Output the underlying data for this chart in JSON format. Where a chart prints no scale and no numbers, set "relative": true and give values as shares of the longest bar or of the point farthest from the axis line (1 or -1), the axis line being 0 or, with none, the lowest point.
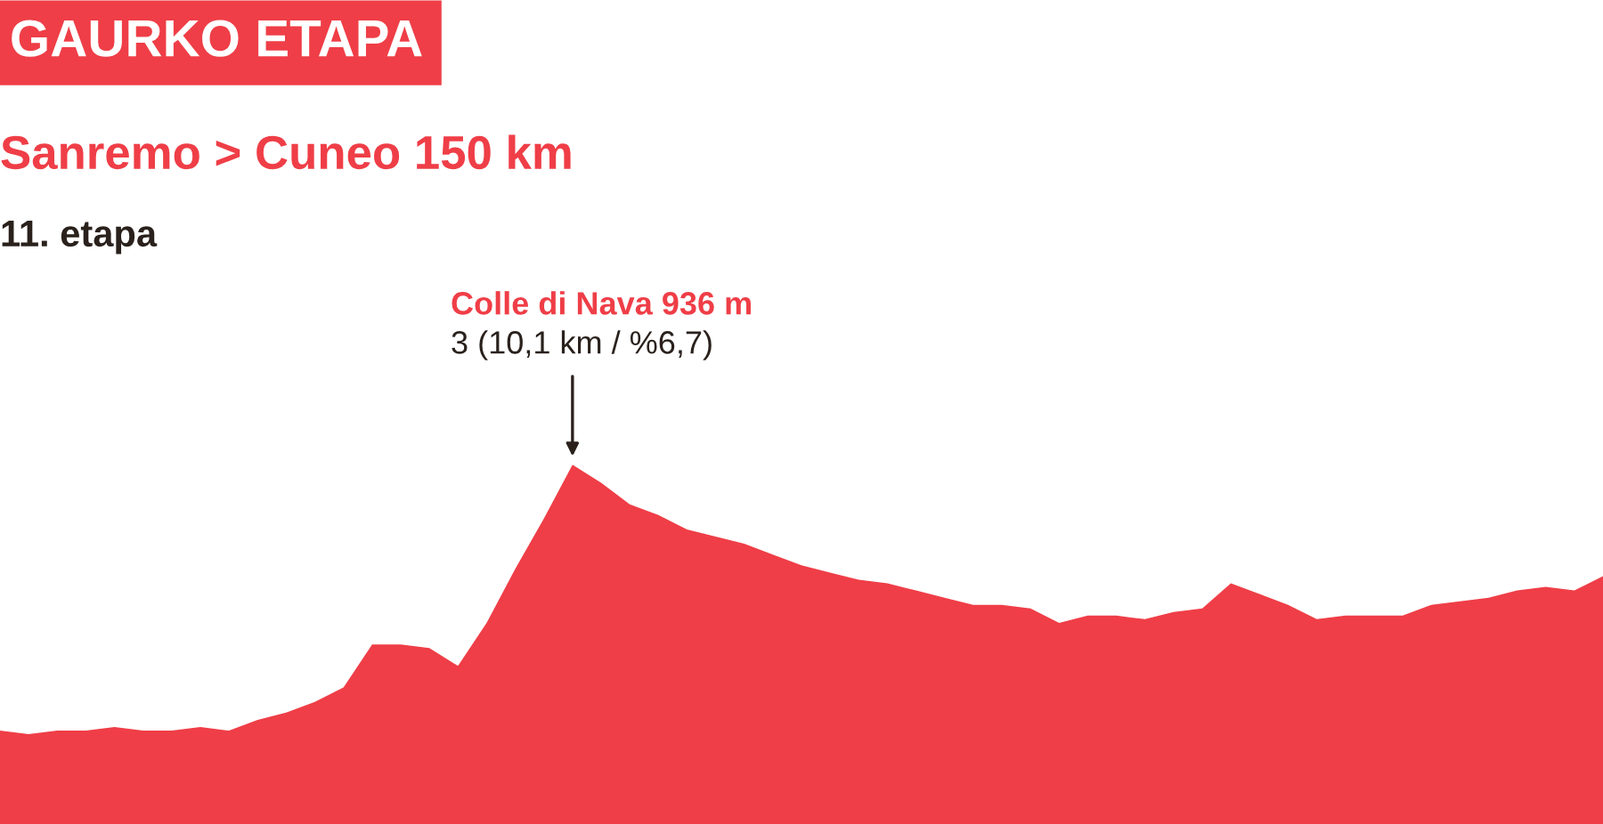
{
  "chart_data": {
    "type": "area",
    "relative": true,
    "title": "GAURKO ETAPA",
    "subtitle": "Sanremo > Cuneo 150 km",
    "categories": [
      null,
      null,
      null,
      null,
      null,
      null,
      null,
      null,
      null,
      null,
      null,
      null,
      null,
      null,
      null,
      null,
      null,
      null,
      null,
      null,
      null,
      null,
      null,
      null,
      null,
      null,
      null,
      null,
      null,
      null,
      null,
      null,
      null,
      null,
      null,
      null,
      null,
      null,
      null,
      null,
      null,
      null,
      null,
      null,
      null,
      null,
      null,
      null,
      null,
      null,
      null,
      null,
      null,
      null,
      null,
      null,
      null
    ],
    "series": [
      {
        "color": "#ef3e47",
        "values": [
          0.26,
          0.25,
          0.26,
          0.26,
          0.27,
          0.26,
          0.26,
          0.27,
          0.26,
          0.29,
          0.31,
          0.34,
          0.38,
          0.5,
          0.5,
          0.49,
          0.44,
          0.56,
          0.71,
          0.85,
          1,
          0.95,
          0.89,
          0.86,
          0.82,
          0.8,
          0.78,
          0.75,
          0.72,
          0.7,
          0.68,
          0.67,
          0.65,
          0.63,
          0.61,
          0.61,
          0.6,
          0.56,
          0.58,
          0.58,
          0.57,
          0.59,
          0.6,
          0.67,
          0.64,
          0.61,
          0.57,
          0.58,
          0.58,
          0.58,
          0.61,
          0.62,
          0.63,
          0.65,
          0.66,
          0.65,
          0.69
        ]
      }
    ],
    "annotations": [
      "11. etapa",
      "Colle di Nava 936 m",
      "3 (10,1 km / %6,7)"
    ]
  }
}
